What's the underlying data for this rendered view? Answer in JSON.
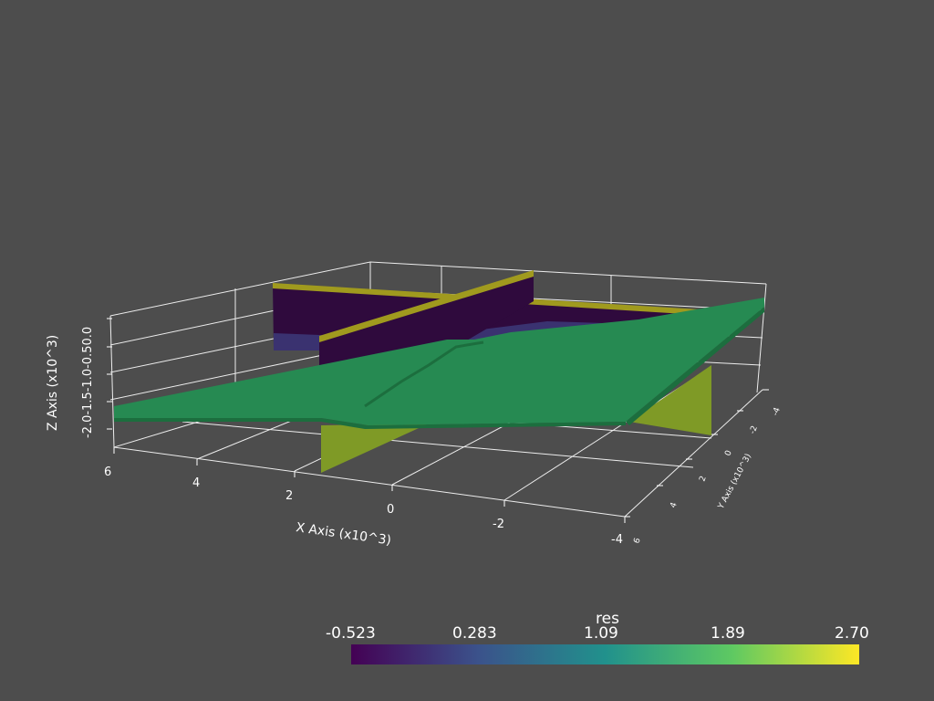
{
  "axes": {
    "x_title": "X Axis (x10^3)",
    "x_ticks": [
      "6",
      "4",
      "2",
      "0",
      "-2",
      "-4"
    ],
    "y_title": "Y Axis (x10^3)",
    "y_ticks": [
      "-4",
      "-2",
      "0",
      "2",
      "4",
      "6"
    ],
    "z_title": "Z Axis (x10^3)",
    "z_ticks": [
      "-2.0",
      "-1.5",
      "-1.0",
      "-0.5",
      "0.0"
    ]
  },
  "colorbar": {
    "title": "res",
    "labels": [
      "-0.523",
      "0.283",
      "1.09",
      "1.89",
      "2.70"
    ],
    "colormap": "viridis",
    "stops": [
      "#440154",
      "#3b528b",
      "#21918c",
      "#5ec962",
      "#fde725"
    ]
  },
  "colors": {
    "background": "#4d4d4d",
    "surface_green": "#268a52",
    "deep_purple": "#2f0a3d",
    "yellow_band": "#a09a1e",
    "lower_yellow": "#7f9a26"
  }
}
